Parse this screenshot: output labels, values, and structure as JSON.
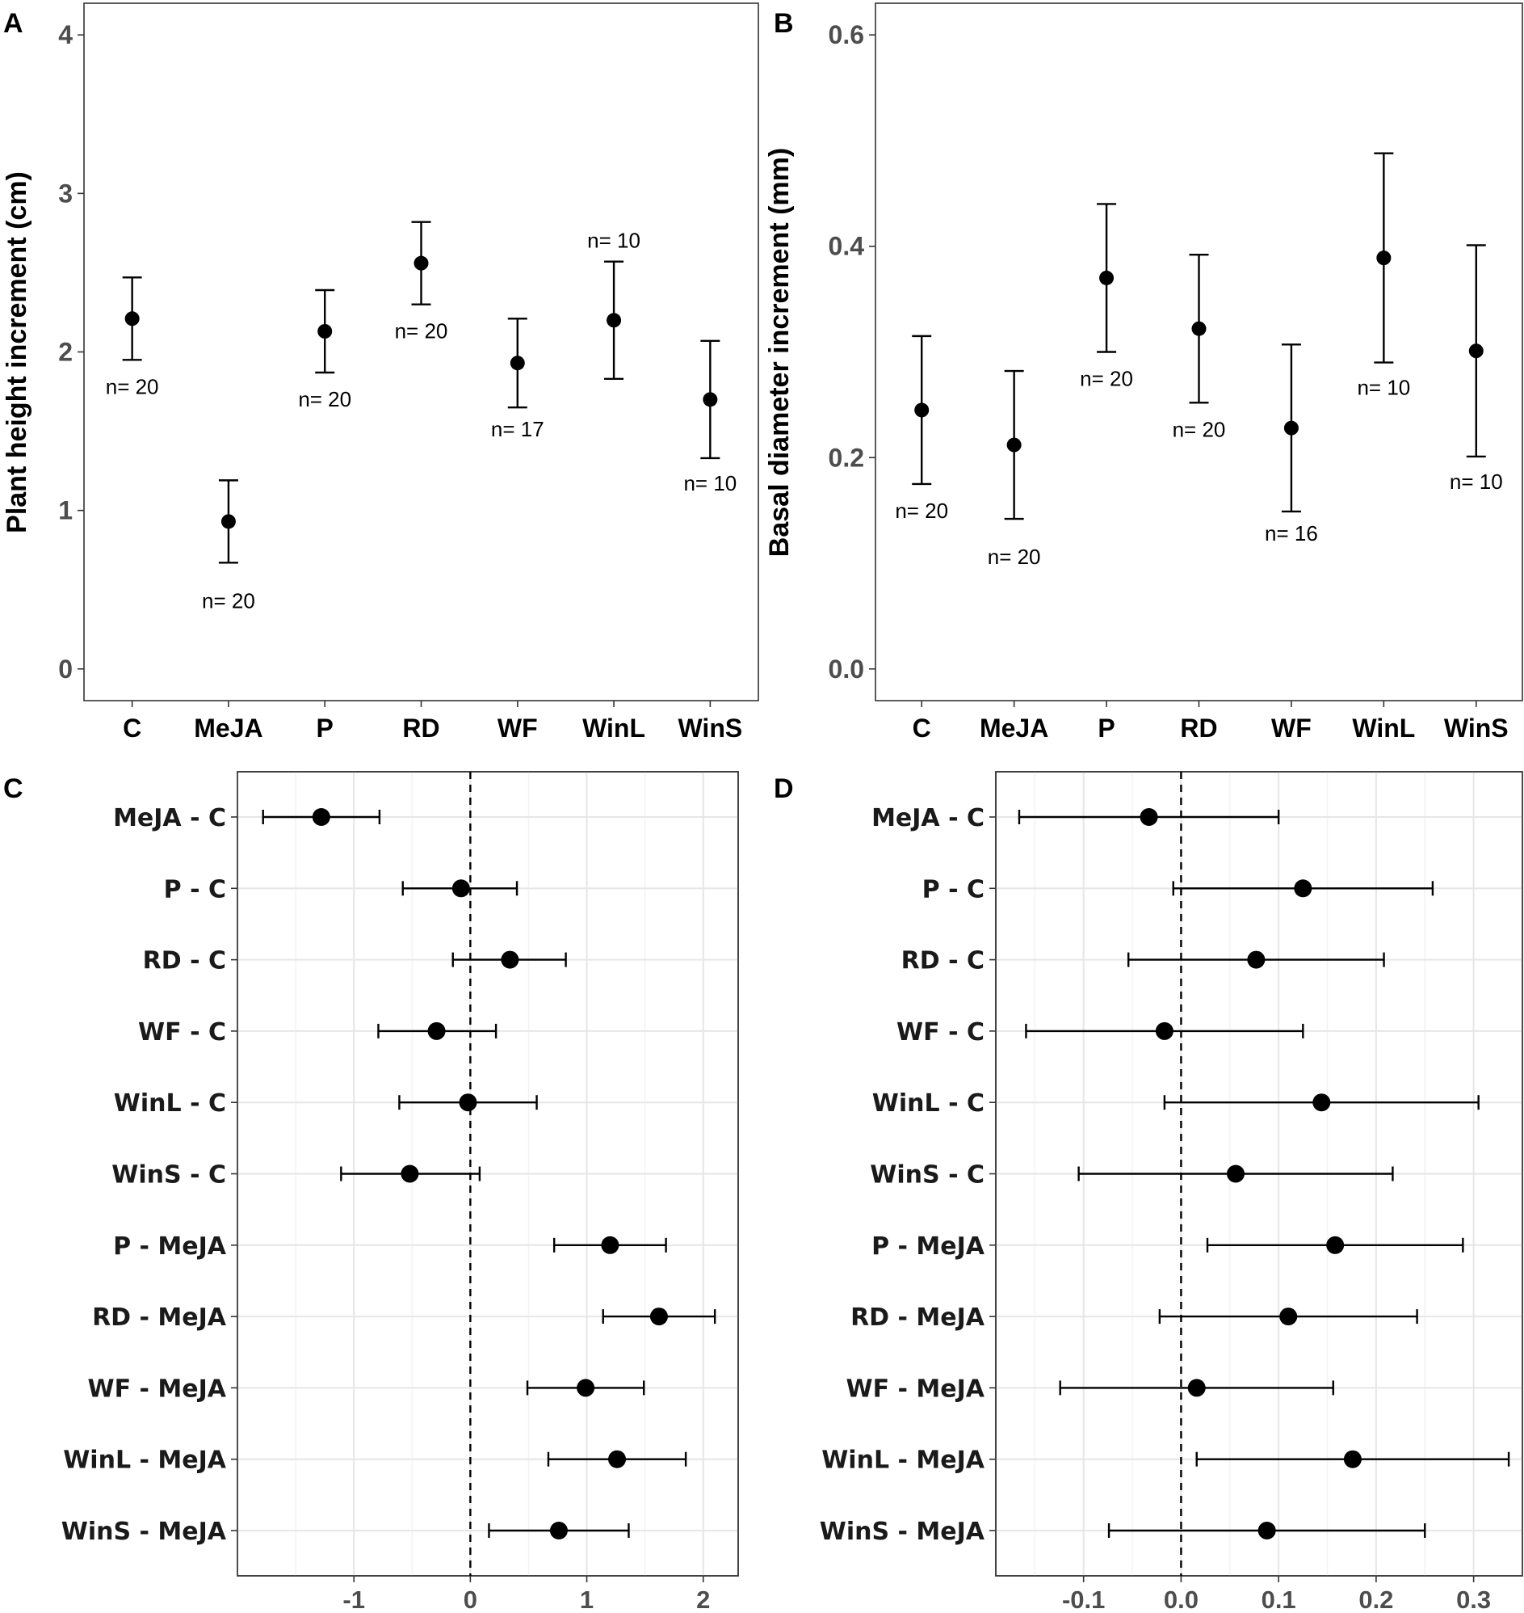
{
  "chart_data": [
    {
      "panel": "A",
      "type": "scatter",
      "subtype": "point-with-errorbars",
      "ylabel": "Plant height increment (cm)",
      "xlabel": "",
      "ylim": [
        -0.2,
        4.2
      ],
      "yticks": [
        "0",
        "1",
        "2",
        "3",
        "4"
      ],
      "categories": [
        "C",
        "MeJA",
        "P",
        "RD",
        "WF",
        "WinL",
        "WinS"
      ],
      "mean": [
        2.21,
        0.93,
        2.13,
        2.56,
        1.93,
        2.2,
        1.7
      ],
      "lower": [
        1.95,
        0.67,
        1.87,
        2.3,
        1.65,
        1.83,
        1.33
      ],
      "upper": [
        2.47,
        1.19,
        2.39,
        2.82,
        2.21,
        2.57,
        2.07
      ],
      "n_labels": [
        "n= 20",
        "n= 20",
        "n= 20",
        "n= 20",
        "n= 17",
        "n= 10",
        "n= 10"
      ],
      "grid": false
    },
    {
      "panel": "B",
      "type": "scatter",
      "subtype": "point-with-errorbars",
      "ylabel": "Basal diameter increment (mm)",
      "xlabel": "",
      "ylim": [
        -0.03,
        0.63
      ],
      "yticks": [
        "0.0",
        "0.2",
        "0.4",
        "0.6"
      ],
      "categories": [
        "C",
        "MeJA",
        "P",
        "RD",
        "WF",
        "WinL",
        "WinS"
      ],
      "mean": [
        0.245,
        0.212,
        0.37,
        0.322,
        0.228,
        0.389,
        0.301
      ],
      "lower": [
        0.175,
        0.142,
        0.3,
        0.252,
        0.149,
        0.29,
        0.201
      ],
      "upper": [
        0.315,
        0.282,
        0.44,
        0.392,
        0.307,
        0.488,
        0.401
      ],
      "n_labels": [
        "n= 20",
        "n= 20",
        "n= 20",
        "n= 20",
        "n= 16",
        "n= 10",
        "n= 10"
      ],
      "grid": false
    },
    {
      "panel": "C",
      "type": "scatter",
      "subtype": "forest-plot",
      "xlabel": "",
      "ylabel": "",
      "xlim": [
        -2.0,
        2.3
      ],
      "xticks": [
        "-1",
        "0",
        "1",
        "2"
      ],
      "reference_line": 0,
      "comparisons": [
        "MeJA - C",
        "P - C",
        "RD - C",
        "WF - C",
        "WinL - C",
        "WinS - C",
        "P - MeJA",
        "RD - MeJA",
        "WF - MeJA",
        "WinL - MeJA",
        "WinS - MeJA"
      ],
      "estimate": [
        -1.28,
        -0.08,
        0.34,
        -0.29,
        -0.02,
        -0.52,
        1.2,
        1.62,
        0.99,
        1.26,
        0.76
      ],
      "lower": [
        -1.78,
        -0.58,
        -0.15,
        -0.79,
        -0.61,
        -1.11,
        0.72,
        1.14,
        0.49,
        0.67,
        0.16
      ],
      "upper": [
        -0.78,
        0.4,
        0.82,
        0.22,
        0.57,
        0.08,
        1.68,
        2.1,
        1.49,
        1.85,
        1.36
      ],
      "grid": true
    },
    {
      "panel": "D",
      "type": "scatter",
      "subtype": "forest-plot",
      "xlabel": "",
      "ylabel": "",
      "xlim": [
        -0.19,
        0.35
      ],
      "xticks": [
        "-0.1",
        "0.0",
        "0.1",
        "0.2",
        "0.3"
      ],
      "reference_line": 0,
      "comparisons": [
        "MeJA - C",
        "P - C",
        "RD - C",
        "WF - C",
        "WinL - C",
        "WinS - C",
        "P - MeJA",
        "RD - MeJA",
        "WF - MeJA",
        "WinL - MeJA",
        "WinS - MeJA"
      ],
      "estimate": [
        -0.033,
        0.125,
        0.077,
        -0.017,
        0.144,
        0.056,
        0.158,
        0.11,
        0.016,
        0.176,
        0.088
      ],
      "lower": [
        -0.166,
        -0.008,
        -0.054,
        -0.159,
        -0.017,
        -0.105,
        0.027,
        -0.022,
        -0.124,
        0.016,
        -0.074
      ],
      "upper": [
        0.1,
        0.258,
        0.208,
        0.125,
        0.305,
        0.217,
        0.289,
        0.242,
        0.156,
        0.336,
        0.25
      ],
      "grid": true
    }
  ]
}
